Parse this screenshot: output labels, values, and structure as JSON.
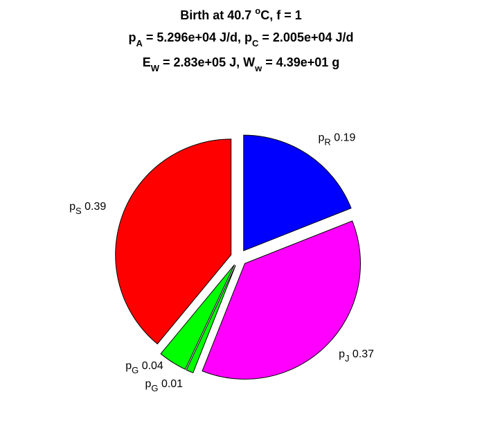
{
  "chart_data": {
    "type": "pie",
    "title_lines": [
      [
        {
          "text": "Birth at 40.7 "
        },
        {
          "text": "o",
          "script": "sup"
        },
        {
          "text": "C, f = 1"
        }
      ],
      [
        {
          "text": "p"
        },
        {
          "text": "A",
          "script": "sub"
        },
        {
          "text": " = 5.296e+04 J/d, p"
        },
        {
          "text": "C",
          "script": "sub"
        },
        {
          "text": " = 2.005e+04 J/d"
        }
      ],
      [
        {
          "text": "E"
        },
        {
          "text": "W",
          "script": "sub"
        },
        {
          "text": " = 2.83e+05 J, W"
        },
        {
          "text": "w",
          "script": "sub"
        },
        {
          "text": " = 4.39e+01 g"
        }
      ]
    ],
    "label_prefix": [
      "p",
      "p",
      "p",
      "p",
      "p"
    ],
    "categories": [
      "R",
      "J",
      "G",
      "G",
      "S"
    ],
    "values": [
      0.19,
      0.37,
      0.01,
      0.04,
      0.39
    ],
    "colors": [
      "#0000ff",
      "#ff00ff",
      "#00ff00",
      "#00ff00",
      "#ff0000"
    ],
    "exploded": true
  }
}
